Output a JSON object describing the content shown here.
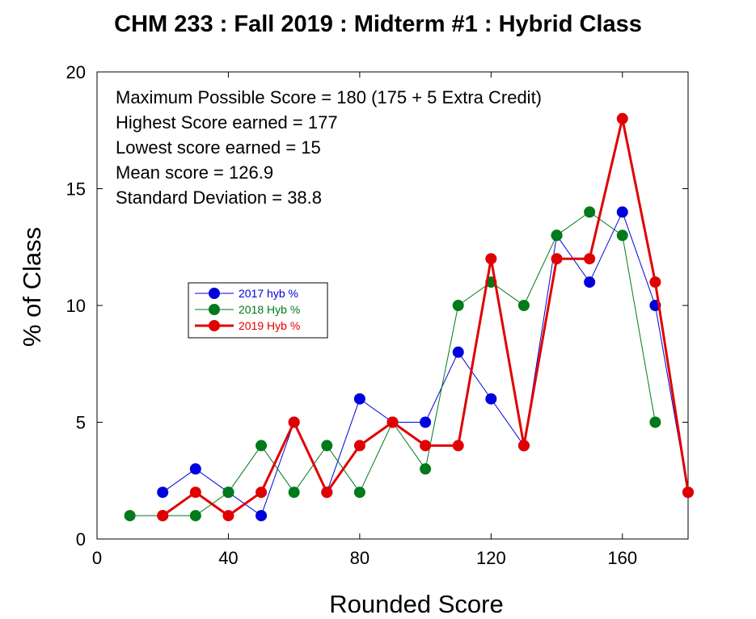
{
  "chart_data": {
    "type": "line",
    "title": "CHM 233 : Fall 2019 : Midterm #1 : Hybrid Class",
    "xlabel": "Rounded Score",
    "ylabel": "% of Class",
    "xlim": [
      0,
      180
    ],
    "ylim": [
      0,
      20
    ],
    "xticks": [
      0,
      40,
      80,
      120,
      160
    ],
    "yticks": [
      0,
      5,
      10,
      15,
      20
    ],
    "grid": false,
    "legend_position": "center-left",
    "annotations": [
      "Maximum Possible Score = 180 (175 + 5 Extra Credit)",
      "Highest Score earned =  177",
      "Lowest score earned = 15",
      "Mean score = 126.9",
      "Standard Deviation = 38.8"
    ],
    "series": [
      {
        "name": "2017 hyb %",
        "color": "#0000dd",
        "line_width": 1,
        "x": [
          20,
          30,
          40,
          50,
          60,
          70,
          80,
          90,
          100,
          110,
          120,
          130,
          140,
          150,
          160,
          170,
          180
        ],
        "y": [
          2,
          3,
          2,
          1,
          5,
          2,
          6,
          5,
          5,
          8,
          6,
          4,
          13,
          11,
          14,
          10,
          2
        ]
      },
      {
        "name": "2018 Hyb %",
        "color": "#007a1a",
        "line_width": 1,
        "x": [
          10,
          20,
          30,
          40,
          50,
          60,
          70,
          80,
          90,
          100,
          110,
          120,
          130,
          140,
          150,
          160,
          170
        ],
        "y": [
          1,
          1,
          1,
          2,
          4,
          2,
          4,
          2,
          5,
          3,
          10,
          11,
          10,
          13,
          14,
          13,
          5
        ]
      },
      {
        "name": "2019 Hyb %",
        "color": "#e00000",
        "line_width": 3,
        "x": [
          20,
          30,
          40,
          50,
          60,
          70,
          80,
          90,
          100,
          110,
          120,
          130,
          140,
          150,
          160,
          170,
          180
        ],
        "y": [
          1,
          2,
          1,
          2,
          5,
          2,
          4,
          5,
          4,
          4,
          12,
          4,
          12,
          12,
          18,
          11,
          2
        ]
      }
    ]
  }
}
